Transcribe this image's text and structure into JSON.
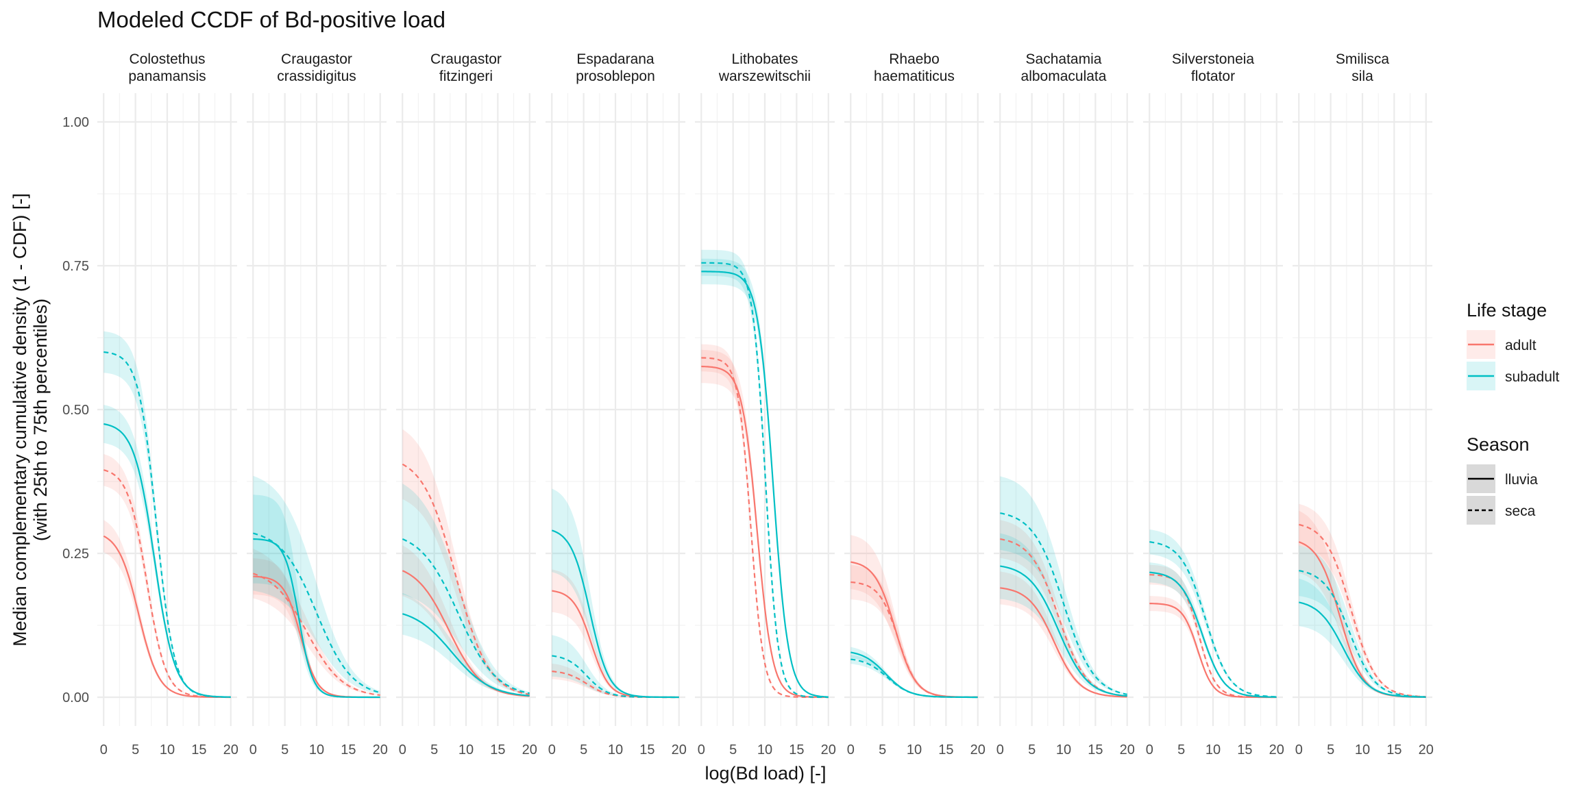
{
  "chart_data": {
    "type": "line",
    "title": "Modeled CCDF of Bd-positive load",
    "xlabel": "log(Bd load) [-]",
    "ylabel_lines": [
      "Median complementary cumulative density (1 - CDF) [-]",
      "(with 25th to 75th percentiles)"
    ],
    "xlim": [
      0,
      20
    ],
    "ylim": [
      0,
      1
    ],
    "x_ticks": [
      0,
      5,
      10,
      15,
      20
    ],
    "y_ticks": [
      0.0,
      0.25,
      0.5,
      0.75,
      1.0
    ],
    "y_tick_labels": [
      "0.00",
      "0.25",
      "0.50",
      "0.75",
      "1.00"
    ],
    "grid": true,
    "legend_position": "right",
    "legends": {
      "life_stage": {
        "title": "Life stage",
        "entries": [
          {
            "label": "adult",
            "color": "#F8766D"
          },
          {
            "label": "subadult",
            "color": "#00BFC4"
          }
        ]
      },
      "season": {
        "title": "Season",
        "entries": [
          {
            "label": "lluvia",
            "linetype": "solid"
          },
          {
            "label": "seca",
            "linetype": "dashed"
          }
        ]
      }
    },
    "curve_model": "logistic: y(x) = start * (1 + exp(-x0/s)) / (1 + exp((x - x0)/s)); band = y * (1 ± band)",
    "panels": [
      {
        "species": [
          "Colostethus",
          "panamansis"
        ],
        "series": [
          {
            "life_stage": "adult",
            "season": "lluvia",
            "start": 0.28,
            "x0": 5.5,
            "s": 1.6,
            "band": 0.1
          },
          {
            "life_stage": "adult",
            "season": "seca",
            "start": 0.395,
            "x0": 6.8,
            "s": 1.5,
            "band": 0.07
          },
          {
            "life_stage": "subadult",
            "season": "lluvia",
            "start": 0.475,
            "x0": 8.0,
            "s": 1.6,
            "band": 0.07
          },
          {
            "life_stage": "subadult",
            "season": "seca",
            "start": 0.6,
            "x0": 8.3,
            "s": 1.4,
            "band": 0.06
          }
        ]
      },
      {
        "species": [
          "Craugastor",
          "crassidigitus"
        ],
        "series": [
          {
            "life_stage": "adult",
            "season": "lluvia",
            "start": 0.21,
            "x0": 7.5,
            "s": 1.3,
            "band": 0.15
          },
          {
            "life_stage": "adult",
            "season": "seca",
            "start": 0.215,
            "x0": 8.5,
            "s": 2.8,
            "band": 0.2
          },
          {
            "life_stage": "subadult",
            "season": "lluvia",
            "start": 0.275,
            "x0": 7.2,
            "s": 1.1,
            "band": 0.28
          },
          {
            "life_stage": "subadult",
            "season": "seca",
            "start": 0.285,
            "x0": 10.0,
            "s": 2.8,
            "band": 0.35
          }
        ]
      },
      {
        "species": [
          "Craugastor",
          "fitzingeri"
        ],
        "series": [
          {
            "life_stage": "adult",
            "season": "lluvia",
            "start": 0.22,
            "x0": 7.3,
            "s": 2.6,
            "band": 0.2
          },
          {
            "life_stage": "adult",
            "season": "seca",
            "start": 0.405,
            "x0": 8.4,
            "s": 2.6,
            "band": 0.15
          },
          {
            "life_stage": "subadult",
            "season": "lluvia",
            "start": 0.145,
            "x0": 7.8,
            "s": 3.0,
            "band": 0.25
          },
          {
            "life_stage": "subadult",
            "season": "seca",
            "start": 0.275,
            "x0": 8.8,
            "s": 3.0,
            "band": 0.35
          }
        ]
      },
      {
        "species": [
          "Espadarana",
          "prosoblepon"
        ],
        "series": [
          {
            "life_stage": "adult",
            "season": "lluvia",
            "start": 0.185,
            "x0": 6.2,
            "s": 1.4,
            "band": 0.2
          },
          {
            "life_stage": "adult",
            "season": "seca",
            "start": 0.045,
            "x0": 5.5,
            "s": 1.7,
            "band": 0.3
          },
          {
            "life_stage": "subadult",
            "season": "lluvia",
            "start": 0.29,
            "x0": 6.0,
            "s": 1.5,
            "band": 0.25
          },
          {
            "life_stage": "subadult",
            "season": "seca",
            "start": 0.072,
            "x0": 5.5,
            "s": 1.6,
            "band": 0.5
          }
        ]
      },
      {
        "species": [
          "Lithobates",
          "warszewitschii"
        ],
        "series": [
          {
            "life_stage": "adult",
            "season": "lluvia",
            "start": 0.575,
            "x0": 8.8,
            "s": 1.2,
            "band": 0.05
          },
          {
            "life_stage": "adult",
            "season": "seca",
            "start": 0.59,
            "x0": 7.8,
            "s": 1.0,
            "band": 0.04
          },
          {
            "life_stage": "subadult",
            "season": "lluvia",
            "start": 0.74,
            "x0": 11.3,
            "s": 1.2,
            "band": 0.03
          },
          {
            "life_stage": "subadult",
            "season": "seca",
            "start": 0.755,
            "x0": 10.1,
            "s": 1.0,
            "band": 0.03
          }
        ]
      },
      {
        "species": [
          "Rhaebo",
          "haematiticus"
        ],
        "series": [
          {
            "life_stage": "adult",
            "season": "lluvia",
            "start": 0.235,
            "x0": 7.0,
            "s": 1.6,
            "band": 0.2
          },
          {
            "life_stage": "adult",
            "season": "seca",
            "start": 0.2,
            "x0": 7.5,
            "s": 1.5,
            "band": 0.15
          },
          {
            "life_stage": "subadult",
            "season": "lluvia",
            "start": 0.078,
            "x0": 5.5,
            "s": 1.8,
            "band": 0.12
          },
          {
            "life_stage": "subadult",
            "season": "seca",
            "start": 0.066,
            "x0": 5.8,
            "s": 1.8,
            "band": 0.12
          }
        ]
      },
      {
        "species": [
          "Sachatamia",
          "albomaculata"
        ],
        "series": [
          {
            "life_stage": "adult",
            "season": "lluvia",
            "start": 0.19,
            "x0": 8.5,
            "s": 2.0,
            "band": 0.15
          },
          {
            "life_stage": "adult",
            "season": "seca",
            "start": 0.275,
            "x0": 9.2,
            "s": 2.2,
            "band": 0.12
          },
          {
            "life_stage": "subadult",
            "season": "lluvia",
            "start": 0.228,
            "x0": 9.2,
            "s": 2.3,
            "band": 0.25
          },
          {
            "life_stage": "subadult",
            "season": "seca",
            "start": 0.32,
            "x0": 10.0,
            "s": 2.4,
            "band": 0.2
          }
        ]
      },
      {
        "species": [
          "Silverstoneia",
          "flotator"
        ],
        "series": [
          {
            "life_stage": "adult",
            "season": "lluvia",
            "start": 0.163,
            "x0": 7.6,
            "s": 1.2,
            "band": 0.08
          },
          {
            "life_stage": "adult",
            "season": "seca",
            "start": 0.213,
            "x0": 7.8,
            "s": 1.3,
            "band": 0.08
          },
          {
            "life_stage": "subadult",
            "season": "lluvia",
            "start": 0.217,
            "x0": 8.3,
            "s": 1.7,
            "band": 0.08
          },
          {
            "life_stage": "subadult",
            "season": "seca",
            "start": 0.27,
            "x0": 8.8,
            "s": 1.9,
            "band": 0.08
          }
        ]
      },
      {
        "species": [
          "Smilisca",
          "sila"
        ],
        "series": [
          {
            "life_stage": "adult",
            "season": "lluvia",
            "start": 0.27,
            "x0": 6.5,
            "s": 1.8,
            "band": 0.2
          },
          {
            "life_stage": "adult",
            "season": "seca",
            "start": 0.3,
            "x0": 8.2,
            "s": 2.0,
            "band": 0.12
          },
          {
            "life_stage": "subadult",
            "season": "lluvia",
            "start": 0.165,
            "x0": 7.0,
            "s": 2.0,
            "band": 0.25
          },
          {
            "life_stage": "subadult",
            "season": "seca",
            "start": 0.22,
            "x0": 8.0,
            "s": 2.0,
            "band": 0.2
          }
        ]
      }
    ]
  }
}
